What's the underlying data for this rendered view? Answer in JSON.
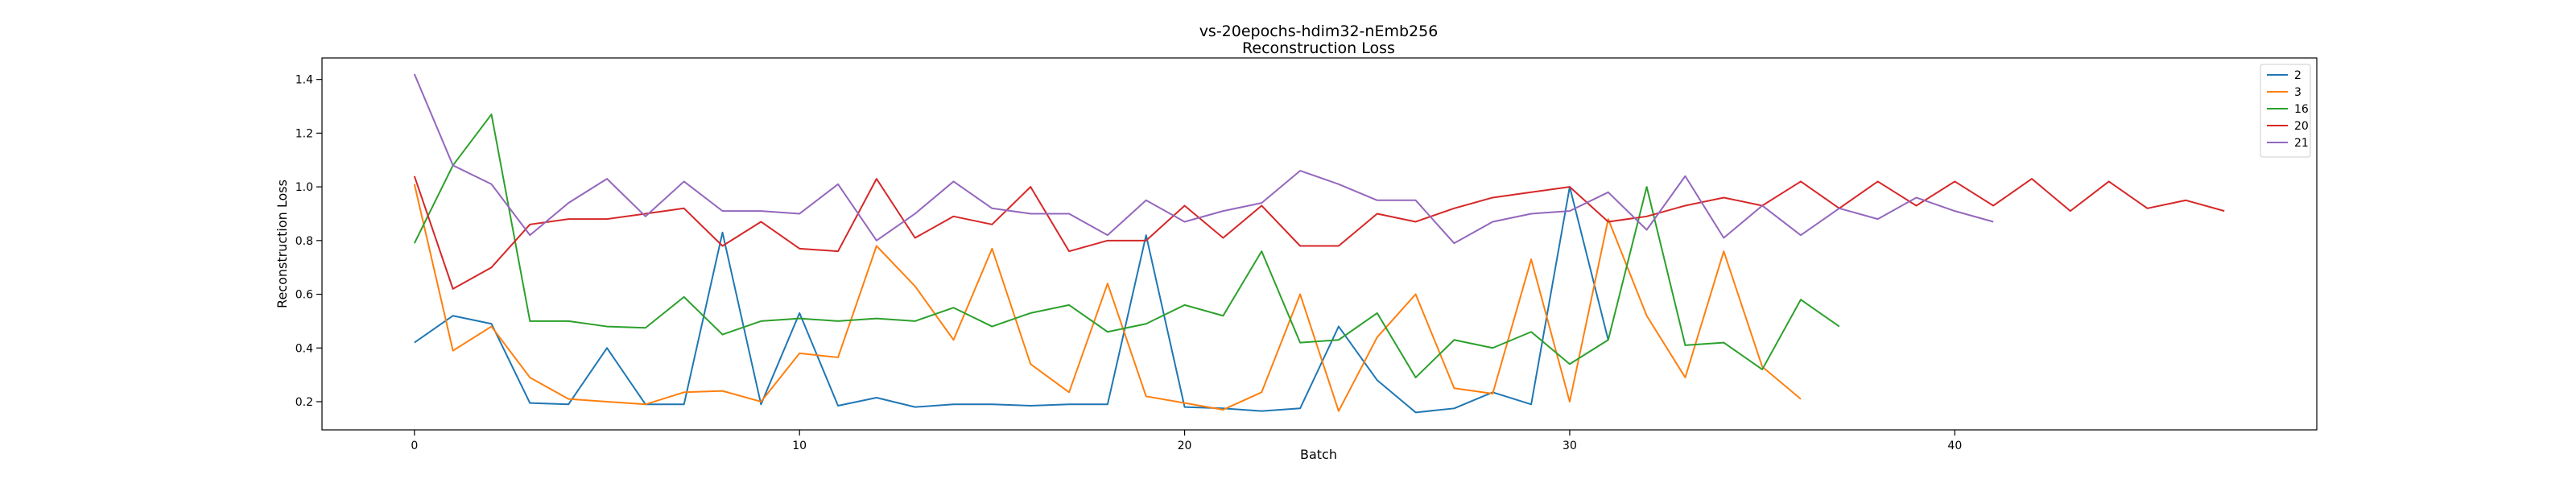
{
  "chart_data": {
    "type": "line",
    "title": "vs-20epochs-hdim32-nEmb256",
    "subtitle": "Reconstruction Loss",
    "xlabel": "Batch",
    "ylabel": "Reconstruction Loss",
    "xlim": [
      -2.4,
      49.4
    ],
    "ylim": [
      0.095,
      1.48
    ],
    "xticks": [
      0,
      10,
      20,
      30,
      40
    ],
    "yticks": [
      0.2,
      0.4,
      0.6,
      0.8,
      1.0,
      1.2,
      1.4
    ],
    "xtick_labels": [
      "0",
      "10",
      "20",
      "30",
      "40"
    ],
    "ytick_labels": [
      "0.2",
      "0.4",
      "0.6",
      "0.8",
      "1.0",
      "1.2",
      "1.4"
    ],
    "grid": false,
    "legend_position": "top-right",
    "series": [
      {
        "name": "2",
        "color": "#1f77b4",
        "values": [
          0.42,
          0.52,
          0.49,
          0.195,
          0.19,
          0.4,
          0.19,
          0.19,
          0.83,
          0.19,
          0.53,
          0.185,
          0.215,
          0.18,
          0.19,
          0.19,
          0.185,
          0.19,
          0.19,
          0.82,
          0.18,
          0.175,
          0.165,
          0.175,
          0.48,
          0.28,
          0.16,
          0.175,
          0.235,
          0.19,
          1.0,
          0.43
        ]
      },
      {
        "name": "3",
        "color": "#ff7f0e",
        "values": [
          1.01,
          0.39,
          0.48,
          0.29,
          0.21,
          0.2,
          0.19,
          0.235,
          0.24,
          0.2,
          0.38,
          0.365,
          0.78,
          0.63,
          0.43,
          0.77,
          0.34,
          0.235,
          0.64,
          0.22,
          0.195,
          0.17,
          0.235,
          0.6,
          0.165,
          0.44,
          0.6,
          0.25,
          0.23,
          0.73,
          0.2,
          0.88,
          0.52,
          0.29,
          0.76,
          0.33,
          0.21
        ]
      },
      {
        "name": "16",
        "color": "#2ca02c",
        "values": [
          0.79,
          1.08,
          1.27,
          0.5,
          0.5,
          0.48,
          0.475,
          0.59,
          0.45,
          0.5,
          0.51,
          0.5,
          0.51,
          0.5,
          0.55,
          0.48,
          0.53,
          0.56,
          0.46,
          0.49,
          0.56,
          0.52,
          0.76,
          0.42,
          0.43,
          0.53,
          0.29,
          0.43,
          0.4,
          0.46,
          0.34,
          0.43,
          1.0,
          0.41,
          0.42,
          0.32,
          0.58,
          0.48
        ]
      },
      {
        "name": "20",
        "color": "#d62728",
        "values": [
          1.04,
          0.62,
          0.7,
          0.86,
          0.88,
          0.88,
          0.9,
          0.92,
          0.78,
          0.87,
          0.77,
          0.76,
          1.03,
          0.81,
          0.89,
          0.86,
          1.0,
          0.76,
          0.8,
          0.8,
          0.93,
          0.81,
          0.93,
          0.78,
          0.78,
          0.9,
          0.87,
          0.92,
          0.96,
          0.98,
          1.0,
          0.87,
          0.89,
          0.93,
          0.96,
          0.93,
          1.02,
          0.92,
          1.02,
          0.93,
          1.02,
          0.93,
          1.03,
          0.91,
          1.02,
          0.92,
          0.95,
          0.91
        ]
      },
      {
        "name": "21",
        "color": "#9467bd",
        "values": [
          1.42,
          1.08,
          1.01,
          0.82,
          0.94,
          1.03,
          0.89,
          1.02,
          0.91,
          0.91,
          0.9,
          1.01,
          0.8,
          0.9,
          1.02,
          0.92,
          0.9,
          0.9,
          0.82,
          0.95,
          0.87,
          0.91,
          0.94,
          1.06,
          1.01,
          0.95,
          0.95,
          0.79,
          0.87,
          0.9,
          0.91,
          0.98,
          0.84,
          1.04,
          0.81,
          0.93,
          0.82,
          0.92,
          0.88,
          0.96,
          0.91,
          0.87
        ]
      }
    ]
  }
}
